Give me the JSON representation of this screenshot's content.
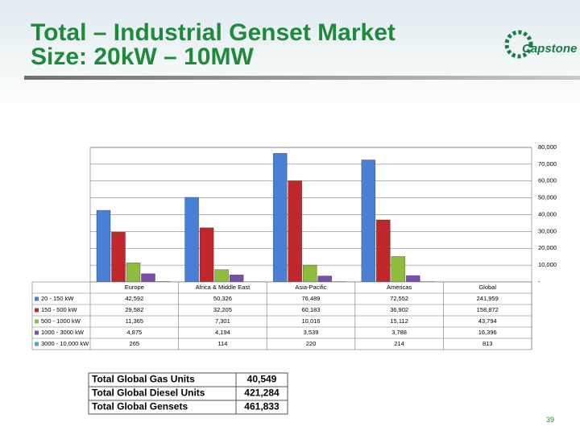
{
  "title": "Total – Industrial Genset Market Size: 20kW – 10MW",
  "logo": "Capstone",
  "page_number": "39",
  "chart_data": {
    "type": "bar",
    "categories": [
      "Europe",
      "Africa & Middle East",
      "Asia-Pacific",
      "Americas",
      "Global"
    ],
    "series": [
      {
        "name": "20 - 150 kW",
        "color": "#4a7fd6",
        "values": [
          42592,
          50326,
          76489,
          72552,
          241959
        ],
        "value_labels": [
          "42,592",
          "50,326",
          "76,489",
          "72,552",
          "241,959"
        ]
      },
      {
        "name": "150 - 500 kW",
        "color": "#c0272d",
        "values": [
          29582,
          32205,
          60183,
          36902,
          158872
        ],
        "value_labels": [
          "29,582",
          "32,205",
          "60,183",
          "36,902",
          "158,872"
        ]
      },
      {
        "name": "500 - 1000 kW",
        "color": "#8fbc3b",
        "values": [
          11365,
          7301,
          10016,
          15112,
          43794
        ],
        "value_labels": [
          "11,365",
          "7,301",
          "10,016",
          "15,112",
          "43,794"
        ]
      },
      {
        "name": "1000 - 3000 kW",
        "color": "#7a4fa8",
        "values": [
          4875,
          4194,
          3539,
          3788,
          16396
        ],
        "value_labels": [
          "4,875",
          "4,194",
          "3,539",
          "3,788",
          "16,396"
        ]
      },
      {
        "name": "3000 - 10,000 kW",
        "color": "#4bacc6",
        "values": [
          265,
          114,
          220,
          214,
          813
        ],
        "value_labels": [
          "265",
          "114",
          "220",
          "214",
          "813"
        ]
      }
    ],
    "ylim": [
      0,
      80000
    ],
    "yticks": [
      {
        "value": 0,
        "label": "-"
      },
      {
        "value": 10000,
        "label": "10,000"
      },
      {
        "value": 20000,
        "label": "20,000"
      },
      {
        "value": 30000,
        "label": "30,000"
      },
      {
        "value": 40000,
        "label": "40,000"
      },
      {
        "value": 50000,
        "label": "50,000"
      },
      {
        "value": 60000,
        "label": "60,000"
      },
      {
        "value": 70000,
        "label": "70,000"
      },
      {
        "value": 80000,
        "label": "80,000"
      }
    ],
    "grid": true
  },
  "summary": {
    "rows": [
      [
        "Total Global Gas Units",
        "40,549"
      ],
      [
        "Total Global Diesel Units",
        "421,284"
      ],
      [
        "Total Global Gensets",
        "461,833"
      ]
    ]
  }
}
